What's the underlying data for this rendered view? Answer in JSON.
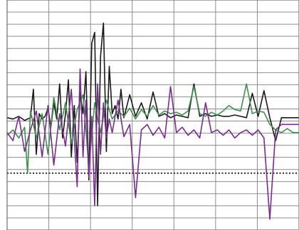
{
  "chart_data": {
    "type": "line",
    "title": "",
    "xlabel": "",
    "ylabel": "",
    "grid": true,
    "legend": "none",
    "grid_columns": 7,
    "grid_rows": 19,
    "xlim": [
      0,
      1
    ],
    "ylim": [
      -8,
      9
    ],
    "reference_lines": [
      {
        "style": "dotted",
        "color": "#333333",
        "y": -3.8
      }
    ],
    "series": [
      {
        "color": "#1a1a1a",
        "x": [
          0,
          0.02,
          0.04,
          0.06,
          0.08,
          0.09,
          0.1,
          0.11,
          0.12,
          0.13,
          0.14,
          0.15,
          0.16,
          0.17,
          0.18,
          0.19,
          0.2,
          0.21,
          0.22,
          0.23,
          0.24,
          0.25,
          0.26,
          0.27,
          0.28,
          0.29,
          0.3,
          0.31,
          0.32,
          0.33,
          0.34,
          0.35,
          0.36,
          0.37,
          0.38,
          0.39,
          0.4,
          0.42,
          0.44,
          0.46,
          0.48,
          0.5,
          0.52,
          0.54,
          0.56,
          0.58,
          0.6,
          0.62,
          0.64,
          0.66,
          0.68,
          0.7,
          0.72,
          0.74,
          0.76,
          0.78,
          0.8,
          0.82,
          0.84,
          0.86,
          0.88,
          0.9,
          0.92,
          0.94,
          0.96,
          0.98,
          1.0
        ],
        "y": [
          0.3,
          0.2,
          0.4,
          0.1,
          0.3,
          2.4,
          -2.4,
          0.6,
          0.2,
          0.4,
          1.0,
          -0.4,
          1.4,
          0.2,
          2.8,
          -1.2,
          0.6,
          3.1,
          -2.6,
          1.2,
          -3.0,
          2.2,
          0.6,
          3.7,
          -4.3,
          5.8,
          6.6,
          -6.2,
          4.8,
          7.3,
          -2.2,
          4.1,
          0.6,
          1.2,
          0.2,
          2.4,
          0.3,
          2.0,
          0.4,
          1.4,
          0.2,
          2.2,
          0.4,
          0.6,
          0.3,
          0.5,
          0.4,
          0.3,
          2.8,
          0.4,
          0.6,
          0.4,
          0.5,
          0.4,
          0.4,
          0.5,
          0.4,
          0.3,
          2.1,
          0.4,
          2.3,
          0.3,
          -1.4,
          0.3,
          0.3,
          0.3,
          0.3
        ]
      },
      {
        "color": "#3f8f4f",
        "x": [
          0,
          0.02,
          0.04,
          0.06,
          0.07,
          0.08,
          0.1,
          0.12,
          0.14,
          0.16,
          0.18,
          0.2,
          0.22,
          0.24,
          0.26,
          0.28,
          0.3,
          0.32,
          0.34,
          0.36,
          0.38,
          0.4,
          0.42,
          0.44,
          0.46,
          0.48,
          0.5,
          0.52,
          0.54,
          0.56,
          0.58,
          0.6,
          0.62,
          0.64,
          0.66,
          0.68,
          0.7,
          0.72,
          0.74,
          0.76,
          0.78,
          0.8,
          0.82,
          0.84,
          0.86,
          0.88,
          0.9,
          0.92,
          0.94,
          0.96,
          0.98,
          1.0
        ],
        "y": [
          -1.0,
          -0.6,
          -1.2,
          -0.4,
          -3.8,
          0.8,
          -1.2,
          0.6,
          -2.4,
          1.8,
          -0.6,
          1.4,
          -1.6,
          0.9,
          2.0,
          -3.4,
          1.4,
          -0.8,
          1.6,
          0.2,
          0.8,
          0.4,
          1.0,
          0.2,
          0.9,
          0.4,
          1.2,
          0.5,
          0.8,
          0.6,
          0.7,
          0.5,
          0.8,
          2.6,
          0.6,
          0.4,
          0.7,
          0.5,
          0.8,
          1.2,
          0.9,
          0.8,
          2.8,
          0.6,
          0.8,
          0.7,
          -0.2,
          -0.6,
          -0.8,
          -0.5,
          -0.8,
          -0.8
        ]
      },
      {
        "color": "#7b2b90",
        "x": [
          0,
          0.02,
          0.04,
          0.06,
          0.08,
          0.1,
          0.12,
          0.14,
          0.16,
          0.18,
          0.2,
          0.22,
          0.24,
          0.25,
          0.26,
          0.27,
          0.28,
          0.29,
          0.3,
          0.31,
          0.32,
          0.33,
          0.34,
          0.35,
          0.36,
          0.38,
          0.4,
          0.42,
          0.44,
          0.46,
          0.48,
          0.5,
          0.52,
          0.54,
          0.56,
          0.58,
          0.6,
          0.62,
          0.64,
          0.66,
          0.68,
          0.7,
          0.72,
          0.74,
          0.76,
          0.78,
          0.8,
          0.82,
          0.84,
          0.86,
          0.88,
          0.9,
          0.92,
          0.94,
          0.96,
          0.98,
          1.0
        ],
        "y": [
          -0.8,
          -1.4,
          0.4,
          -2.2,
          -0.6,
          0.8,
          -2.6,
          1.2,
          -3.2,
          0.6,
          -1.8,
          2.4,
          -4.8,
          3.9,
          -2.6,
          1.6,
          -4.1,
          0.4,
          -6.2,
          2.8,
          -2.4,
          1.4,
          -1.2,
          0.2,
          -0.8,
          1.6,
          -1.1,
          -0.2,
          -5.6,
          -0.6,
          -0.2,
          -1.0,
          -0.4,
          -1.2,
          2.6,
          -0.8,
          -0.4,
          -1.0,
          -0.6,
          -1.2,
          1.4,
          -0.8,
          -0.6,
          -1.0,
          -0.6,
          -1.2,
          -0.8,
          -0.6,
          -1.0,
          -0.6,
          -1.2,
          -7.2,
          -0.6,
          -0.2,
          -0.2,
          -0.2,
          -0.2
        ]
      }
    ]
  }
}
